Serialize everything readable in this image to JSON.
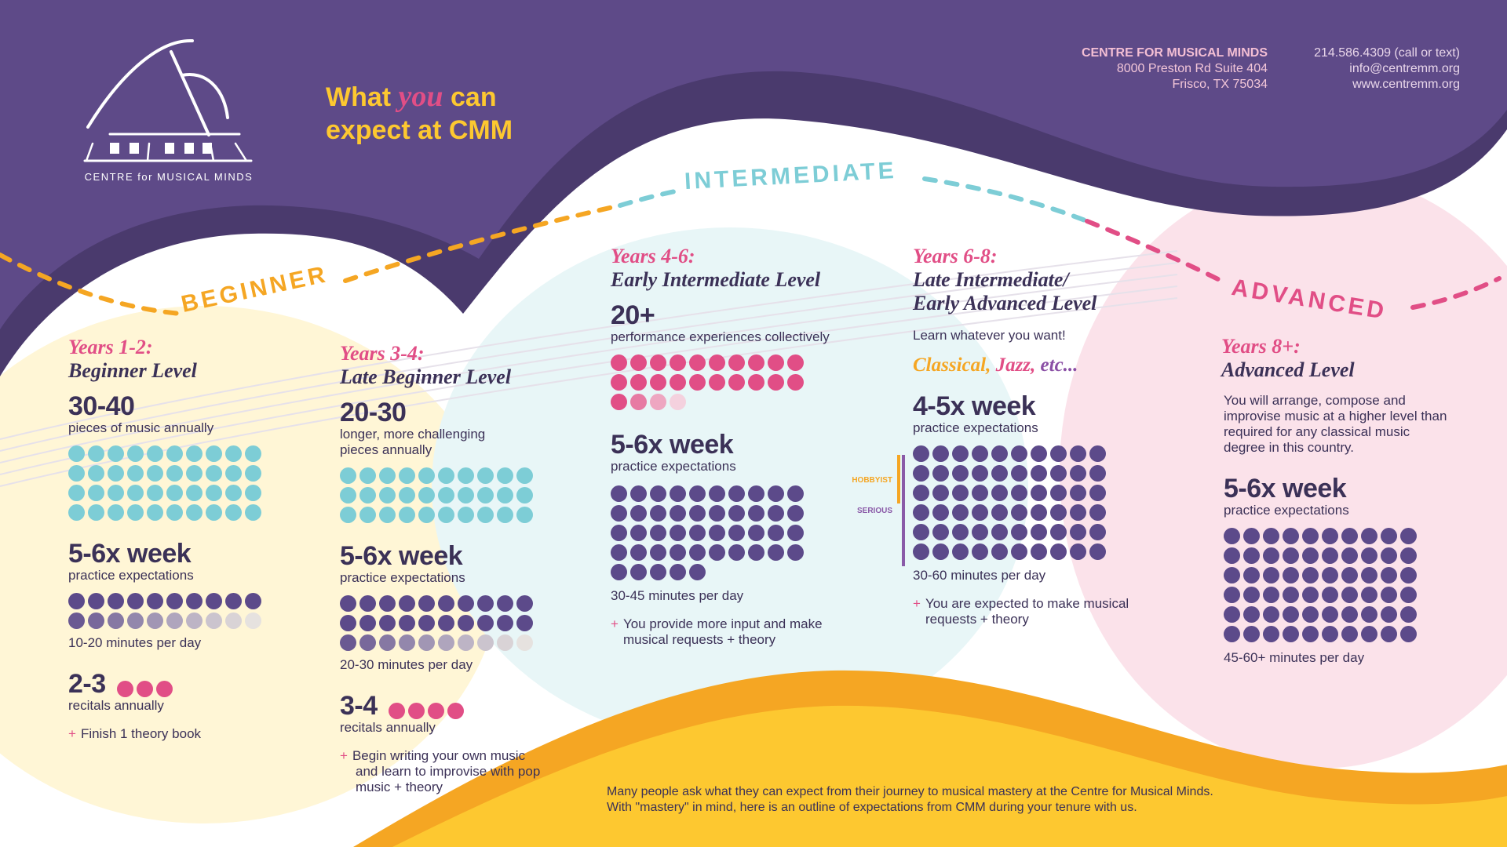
{
  "header": {
    "logo_text": "CENTRE for MUSICAL MINDS",
    "title_line1_a": "What",
    "title_you": "you",
    "title_line1_b": "can",
    "title_line2": "expect at CMM",
    "contact": {
      "org": "CENTRE FOR MUSICAL MINDS",
      "address1": "8000 Preston Rd Suite 404",
      "address2": "Frisco, TX 75034",
      "phone": "214.586.4309 (call or text)",
      "email": "info@centremm.org",
      "web": "www.centremm.org"
    }
  },
  "stages": {
    "beginner": "BEGINNER",
    "intermediate": "INTERMEDIATE",
    "advanced": "ADVANCED"
  },
  "colors": {
    "purple": "#5c4a8a",
    "teal": "#7dcdd6",
    "pink": "#e14e86",
    "orange": "#f5a623",
    "yellow": "#fdc830",
    "dark": "#3b3157"
  },
  "levels": [
    {
      "years": "Years 1-2:",
      "title": "Beginner Level",
      "pieces": "30-40",
      "pieces_label": "pieces of music annually",
      "pieces_dots": {
        "count": 40,
        "cols": 10,
        "color": "#7dcdd6",
        "fade": 0
      },
      "practice": "5-6x week",
      "practice_label": "practice expectations",
      "practice_dots": {
        "count": 20,
        "cols": 10,
        "color": "#5c4a8a",
        "fade": 10
      },
      "minutes": "10-20 minutes per day",
      "recitals": "2-3",
      "recitals_label": "recitals annually",
      "recital_dots": 3,
      "note": "Finish 1 theory book"
    },
    {
      "years": "Years 3-4:",
      "title": "Late Beginner Level",
      "pieces": "20-30",
      "pieces_label": "longer, more challenging pieces annually",
      "pieces_dots": {
        "count": 30,
        "cols": 10,
        "color": "#7dcdd6",
        "fade": 0
      },
      "practice": "5-6x week",
      "practice_label": "practice expectations",
      "practice_dots": {
        "count": 30,
        "cols": 10,
        "color": "#5c4a8a",
        "fade": 10
      },
      "minutes": "20-30 minutes per day",
      "recitals": "3-4",
      "recitals_label": "recitals annually",
      "recital_dots": 4,
      "note": "Begin writing your own music and learn to improvise with pop music + theory"
    },
    {
      "years": "Years 4-6:",
      "title": "Early  Intermediate Level",
      "pieces": "20+",
      "pieces_label": "performance experiences collectively",
      "pieces_dots": {
        "count": 24,
        "cols": 10,
        "color": "#e14e86",
        "fade": 3
      },
      "practice": "5-6x week",
      "practice_label": "practice expectations",
      "practice_dots": {
        "count": 45,
        "cols": 10,
        "color": "#5c4a8a",
        "fade": 0
      },
      "minutes": "30-45 minutes per day",
      "note": "You provide more input and make musical requests  + theory"
    },
    {
      "years": "Years 6-8:",
      "title": "Late Intermediate/ Early Advanced Level",
      "tagline": "Learn whatever you want!",
      "genres": {
        "classical": "Classical,",
        "jazz": "Jazz,",
        "etc": "etc..."
      },
      "practice": "4-5x week",
      "practice_label": "practice expectations",
      "practice_dots": {
        "count": 60,
        "cols": 10,
        "color": "#5c4a8a",
        "fade": 0
      },
      "hobbyist": "HOBBYIST",
      "serious": "SERIOUS",
      "minutes": "30-60 minutes per day",
      "note": "You are expected to make musical requests  + theory"
    },
    {
      "years": "Years 8+:",
      "title": "Advanced Level",
      "description": "You will arrange, compose and improvise music at a higher level than required for any classical music degree in this country.",
      "practice": "5-6x week",
      "practice_label": "practice expectations",
      "practice_dots": {
        "count": 60,
        "cols": 10,
        "color": "#5c4a8a",
        "fade": 0
      },
      "minutes": "45-60+ minutes per day"
    }
  ],
  "footer": {
    "line1": "Many people ask what they can expect from their journey to musical mastery at the Centre for Musical Minds.",
    "line2": "With \"mastery\" in mind, here is an outline of expectations from CMM during your tenure with us."
  }
}
